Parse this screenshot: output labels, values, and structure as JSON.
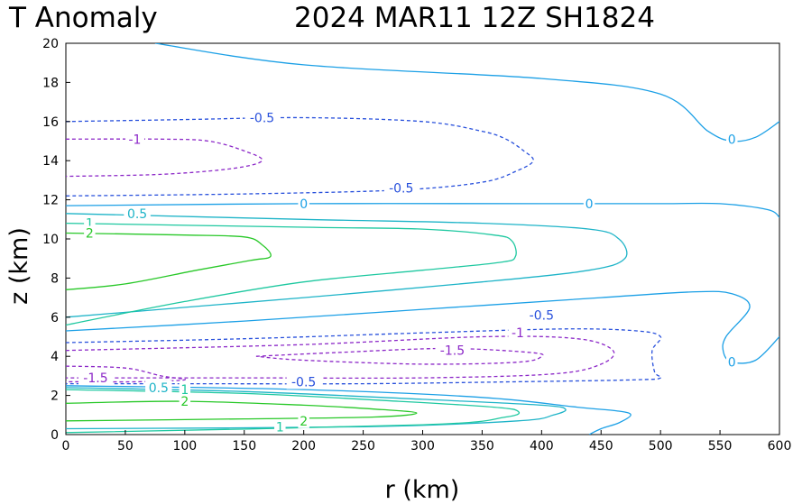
{
  "chart_data": {
    "type": "contour",
    "title_left": "T Anomaly",
    "title_right": "2024 MAR11 12Z   SH1824",
    "xlabel": "r (km)",
    "ylabel": "z (km)",
    "xlim": [
      0,
      600
    ],
    "ylim": [
      0,
      20
    ],
    "xticks": [
      "0",
      "50",
      "100",
      "150",
      "200",
      "250",
      "300",
      "350",
      "400",
      "450",
      "500",
      "550",
      "600"
    ],
    "yticks": [
      "0",
      "2",
      "4",
      "6",
      "8",
      "10",
      "12",
      "14",
      "16",
      "18",
      "20"
    ],
    "grid": false,
    "contours": [
      {
        "level": 0,
        "color": "#1ca0e6",
        "dashed": false,
        "points": [
          [
            75,
            20
          ],
          [
            200,
            18.9
          ],
          [
            400,
            18.2
          ],
          [
            500,
            17.4
          ],
          [
            540,
            15.5
          ],
          [
            560,
            15
          ],
          [
            580,
            15.2
          ],
          [
            600,
            16
          ]
        ]
      },
      {
        "level": 0,
        "color": "#1ca0e6",
        "dashed": false,
        "points": [
          [
            0,
            11.7
          ],
          [
            200,
            11.8
          ],
          [
            400,
            11.8
          ],
          [
            500,
            11.8
          ],
          [
            550,
            11.8
          ],
          [
            590,
            11.5
          ],
          [
            600,
            11.1
          ]
        ]
      },
      {
        "level": 0,
        "color": "#1ca0e6",
        "dashed": false,
        "points": [
          [
            0,
            5.3
          ],
          [
            150,
            5.8
          ],
          [
            300,
            6.4
          ],
          [
            450,
            7
          ],
          [
            530,
            7.3
          ],
          [
            560,
            7.2
          ],
          [
            575,
            6.5
          ],
          [
            555,
            5
          ],
          [
            553,
            4.2
          ],
          [
            560,
            3.7
          ],
          [
            580,
            3.8
          ],
          [
            600,
            5
          ]
        ]
      },
      {
        "level": 0,
        "color": "#1ca0e6",
        "dashed": false,
        "points": [
          [
            0,
            2.5
          ],
          [
            200,
            2.3
          ],
          [
            350,
            1.9
          ],
          [
            430,
            1.4
          ],
          [
            465,
            1.2
          ],
          [
            475,
            1
          ],
          [
            465,
            0.6
          ],
          [
            450,
            0.3
          ],
          [
            440,
            0
          ]
        ]
      },
      {
        "level": -0.5,
        "color": "#2850dc",
        "dashed": true,
        "points": [
          [
            0,
            16
          ],
          [
            100,
            16.1
          ],
          [
            200,
            16.2
          ],
          [
            300,
            16
          ],
          [
            350,
            15.5
          ],
          [
            370,
            15.1
          ],
          [
            385,
            14.5
          ],
          [
            393,
            14
          ],
          [
            380,
            13.5
          ],
          [
            350,
            12.9
          ],
          [
            280,
            12.5
          ],
          [
            150,
            12.3
          ],
          [
            0,
            12.2
          ]
        ]
      },
      {
        "level": -0.5,
        "color": "#2850dc",
        "dashed": true,
        "points": [
          [
            0,
            4.7
          ],
          [
            150,
            4.9
          ],
          [
            300,
            5.2
          ],
          [
            420,
            5.4
          ],
          [
            480,
            5.3
          ],
          [
            500,
            5
          ],
          [
            493,
            4.3
          ],
          [
            495,
            3.2
          ],
          [
            500,
            2.9
          ],
          [
            480,
            2.8
          ],
          [
            380,
            2.7
          ],
          [
            250,
            2.6
          ],
          [
            100,
            2.6
          ],
          [
            0,
            2.6
          ]
        ]
      },
      {
        "level": -1,
        "color": "#8c28c8",
        "dashed": true,
        "points": [
          [
            0,
            15.1
          ],
          [
            80,
            15.1
          ],
          [
            120,
            15
          ],
          [
            150,
            14.5
          ],
          [
            165,
            14
          ],
          [
            140,
            13.6
          ],
          [
            80,
            13.3
          ],
          [
            0,
            13.2
          ]
        ]
      },
      {
        "level": -1,
        "color": "#8c28c8",
        "dashed": true,
        "points": [
          [
            0,
            4.3
          ],
          [
            200,
            4.6
          ],
          [
            350,
            5
          ],
          [
            430,
            4.9
          ],
          [
            460,
            4.3
          ],
          [
            450,
            3.6
          ],
          [
            410,
            3.1
          ],
          [
            300,
            2.9
          ],
          [
            150,
            2.9
          ],
          [
            0,
            2.9
          ]
        ]
      },
      {
        "level": -1.5,
        "color": "#8c28c8",
        "dashed": true,
        "points": [
          [
            0,
            3.5
          ],
          [
            50,
            3.4
          ],
          [
            80,
            3
          ],
          [
            100,
            2.8
          ],
          [
            60,
            2.7
          ],
          [
            0,
            2.7
          ]
        ]
      },
      {
        "level": -1.5,
        "color": "#8c28c8",
        "dashed": true,
        "points": [
          [
            160,
            4
          ],
          [
            230,
            4.2
          ],
          [
            320,
            4.4
          ],
          [
            390,
            4.2
          ],
          [
            400,
            4
          ],
          [
            380,
            3.7
          ],
          [
            300,
            3.6
          ],
          [
            200,
            3.8
          ],
          [
            160,
            4
          ]
        ]
      },
      {
        "level": 0.5,
        "color": "#1eb4c8",
        "dashed": false,
        "points": [
          [
            0,
            11.3
          ],
          [
            200,
            11
          ],
          [
            350,
            10.8
          ],
          [
            440,
            10.5
          ],
          [
            465,
            10
          ],
          [
            470,
            9
          ],
          [
            440,
            8.4
          ],
          [
            350,
            7.8
          ],
          [
            200,
            7
          ],
          [
            100,
            6.5
          ],
          [
            0,
            6
          ]
        ]
      },
      {
        "level": 0.5,
        "color": "#1eb4c8",
        "dashed": false,
        "points": [
          [
            0,
            2.4
          ],
          [
            150,
            2.2
          ],
          [
            300,
            1.8
          ],
          [
            400,
            1.5
          ],
          [
            420,
            1.3
          ],
          [
            410,
            1
          ],
          [
            380,
            0.7
          ],
          [
            250,
            0.4
          ],
          [
            0,
            0.3
          ]
        ]
      },
      {
        "level": 1,
        "color": "#1ec8a0",
        "dashed": false,
        "points": [
          [
            0,
            10.8
          ],
          [
            200,
            10.6
          ],
          [
            300,
            10.5
          ],
          [
            360,
            10.2
          ],
          [
            375,
            9.9
          ],
          [
            378,
            9.1
          ],
          [
            365,
            8.8
          ],
          [
            300,
            8.4
          ],
          [
            200,
            7.8
          ],
          [
            100,
            6.8
          ],
          [
            0,
            5.6
          ]
        ]
      },
      {
        "level": 1,
        "color": "#1ec8a0",
        "dashed": false,
        "points": [
          [
            0,
            2.3
          ],
          [
            150,
            2.1
          ],
          [
            280,
            1.7
          ],
          [
            360,
            1.4
          ],
          [
            380,
            1.2
          ],
          [
            370,
            0.9
          ],
          [
            300,
            0.5
          ],
          [
            0,
            0.1
          ]
        ]
      },
      {
        "level": 2,
        "color": "#28c828",
        "dashed": false,
        "points": [
          [
            0,
            10.3
          ],
          [
            100,
            10.2
          ],
          [
            150,
            10.1
          ],
          [
            165,
            9.7
          ],
          [
            172,
            9.1
          ],
          [
            155,
            8.9
          ],
          [
            110,
            8.4
          ],
          [
            50,
            7.7
          ],
          [
            0,
            7.4
          ]
        ]
      },
      {
        "level": 2,
        "color": "#28c828",
        "dashed": false,
        "points": [
          [
            0,
            1.6
          ],
          [
            100,
            1.7
          ],
          [
            200,
            1.5
          ],
          [
            260,
            1.3
          ],
          [
            295,
            1.1
          ],
          [
            260,
            0.9
          ],
          [
            150,
            0.8
          ],
          [
            0,
            0.7
          ]
        ]
      }
    ],
    "contour_labels": [
      {
        "text": "0",
        "color": "#1ca0e6",
        "x": 560,
        "y": 15.1
      },
      {
        "text": "0",
        "color": "#1ca0e6",
        "x": 200,
        "y": 11.8
      },
      {
        "text": "0",
        "color": "#1ca0e6",
        "x": 440,
        "y": 11.8
      },
      {
        "text": "0",
        "color": "#1ca0e6",
        "x": 560,
        "y": 3.7
      },
      {
        "text": "-0.5",
        "color": "#2850dc",
        "x": 165,
        "y": 16.2
      },
      {
        "text": "-0.5",
        "color": "#2850dc",
        "x": 282,
        "y": 12.6
      },
      {
        "text": "-0.5",
        "color": "#2850dc",
        "x": 400,
        "y": 6.1
      },
      {
        "text": "-0.5",
        "color": "#2850dc",
        "x": 200,
        "y": 2.7
      },
      {
        "text": "-1",
        "color": "#8c28c8",
        "x": 58,
        "y": 15.1
      },
      {
        "text": "-1",
        "color": "#8c28c8",
        "x": 380,
        "y": 5.2
      },
      {
        "text": "-1.5",
        "color": "#8c28c8",
        "x": 325,
        "y": 4.3
      },
      {
        "text": "-1.5",
        "color": "#8c28c8",
        "x": 25,
        "y": 2.9
      },
      {
        "text": "0.5",
        "color": "#1eb4c8",
        "x": 60,
        "y": 11.3
      },
      {
        "text": "0.5",
        "color": "#1eb4c8",
        "x": 78,
        "y": 2.4
      },
      {
        "text": "1",
        "color": "#1ec8a0",
        "x": 20,
        "y": 10.8
      },
      {
        "text": "1",
        "color": "#1ec8a0",
        "x": 100,
        "y": 2.3
      },
      {
        "text": "1",
        "color": "#1ec8a0",
        "x": 180,
        "y": 0.4
      },
      {
        "text": "2",
        "color": "#28c828",
        "x": 20,
        "y": 10.3
      },
      {
        "text": "2",
        "color": "#28c828",
        "x": 100,
        "y": 1.7
      },
      {
        "text": "2",
        "color": "#28c828",
        "x": 200,
        "y": 0.7
      }
    ]
  }
}
